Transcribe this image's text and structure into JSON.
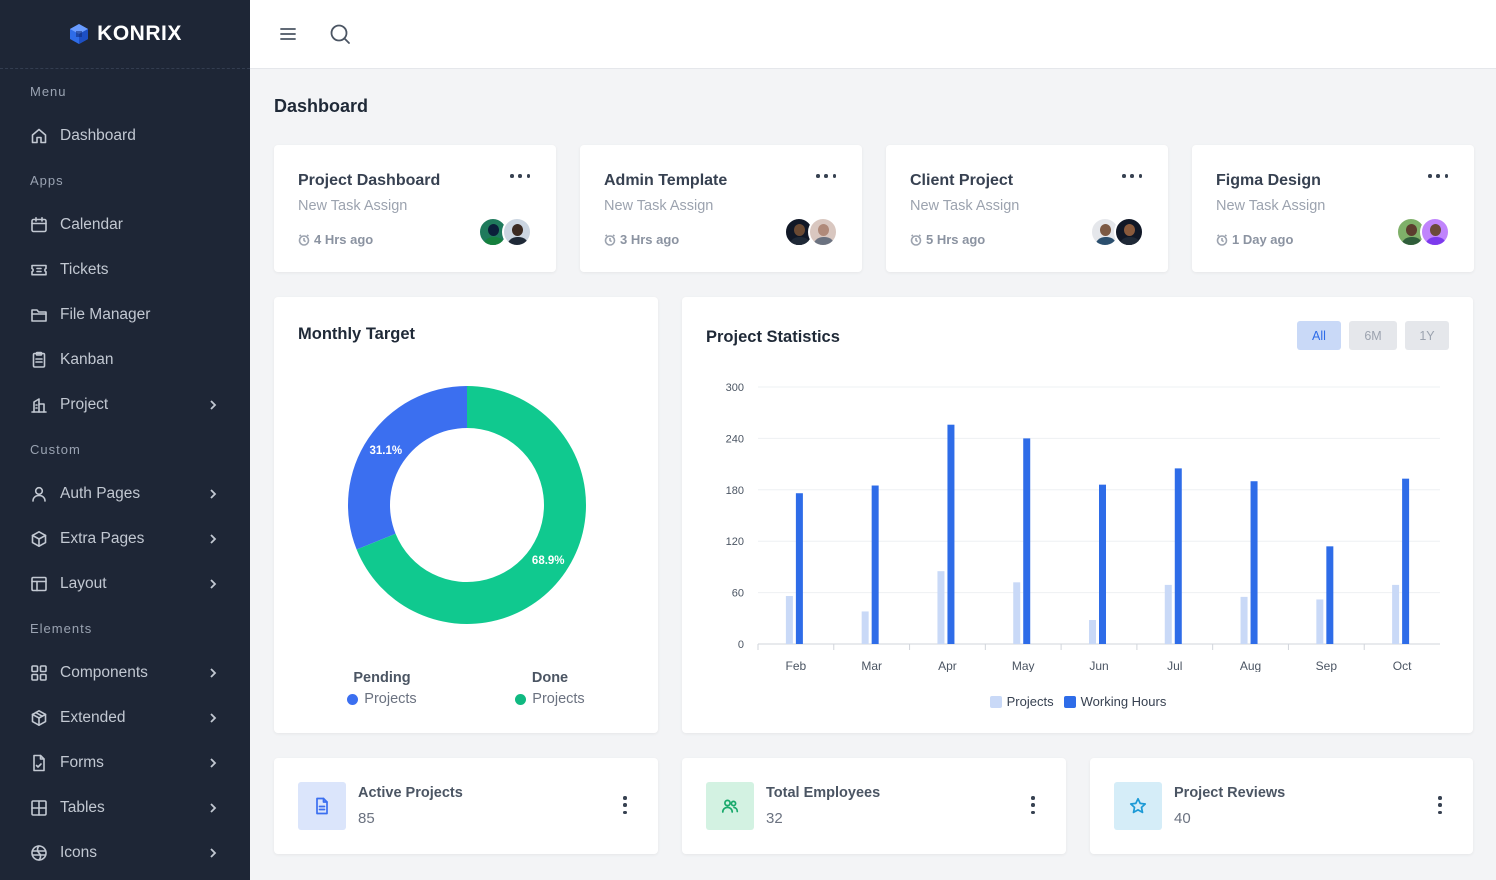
{
  "brand": {
    "name": "KONRIX"
  },
  "sidebar": {
    "sections": [
      {
        "title": "Menu",
        "items": [
          {
            "label": "Dashboard",
            "icon": "home-icon",
            "chevron": false
          }
        ]
      },
      {
        "title": "Apps",
        "items": [
          {
            "label": "Calendar",
            "icon": "calendar-icon",
            "chevron": false
          },
          {
            "label": "Tickets",
            "icon": "ticket-icon",
            "chevron": false
          },
          {
            "label": "File Manager",
            "icon": "folder-icon",
            "chevron": false
          },
          {
            "label": "Kanban",
            "icon": "clipboard-icon",
            "chevron": false
          },
          {
            "label": "Project",
            "icon": "building-icon",
            "chevron": true
          }
        ]
      },
      {
        "title": "Custom",
        "items": [
          {
            "label": "Auth Pages",
            "icon": "user-icon",
            "chevron": true
          },
          {
            "label": "Extra Pages",
            "icon": "box-icon",
            "chevron": true
          },
          {
            "label": "Layout",
            "icon": "layout-icon",
            "chevron": true
          }
        ]
      },
      {
        "title": "Elements",
        "items": [
          {
            "label": "Components",
            "icon": "components-icon",
            "chevron": true
          },
          {
            "label": "Extended",
            "icon": "package-icon",
            "chevron": true
          },
          {
            "label": "Forms",
            "icon": "form-icon",
            "chevron": true
          },
          {
            "label": "Tables",
            "icon": "table-icon",
            "chevron": true
          },
          {
            "label": "Icons",
            "icon": "icons-icon",
            "chevron": true
          }
        ]
      }
    ]
  },
  "topbar": {
    "menu_icon": "hamburger-icon",
    "search_icon": "search-icon"
  },
  "page": {
    "title": "Dashboard"
  },
  "project_cards": [
    {
      "title": "Project Dashboard",
      "subtitle": "New Task Assign",
      "time": "4 Hrs ago"
    },
    {
      "title": "Admin Template",
      "subtitle": "New Task Assign",
      "time": "3 Hrs ago"
    },
    {
      "title": "Client Project",
      "subtitle": "New Task Assign",
      "time": "5 Hrs ago"
    },
    {
      "title": "Figma Design",
      "subtitle": "New Task Assign",
      "time": "1 Day ago"
    }
  ],
  "monthly_target": {
    "title": "Monthly Target",
    "pending": {
      "title": "Pending",
      "sub": "Projects",
      "color": "#3b6ff0"
    },
    "done": {
      "title": "Done",
      "sub": "Projects",
      "color": "#10c98f"
    }
  },
  "project_statistics": {
    "title": "Project Statistics",
    "ranges": [
      "All",
      "6M",
      "1Y"
    ],
    "active_range": "All"
  },
  "stats": [
    {
      "label": "Active Projects",
      "value": "85",
      "icon": "file-icon",
      "bg": "#dbe5fb",
      "color": "#3b6ff0"
    },
    {
      "label": "Total Employees",
      "value": "32",
      "icon": "users-icon",
      "bg": "#d3f2e2",
      "color": "#18a96b"
    },
    {
      "label": "Project Reviews",
      "value": "40",
      "icon": "star-icon",
      "bg": "#d5edf8",
      "color": "#1c9ad6"
    }
  ],
  "chart_data": [
    {
      "type": "pie",
      "labels": [
        "Pending",
        "Done"
      ],
      "values": [
        31.1,
        68.9
      ],
      "value_labels": [
        "31.1%",
        "68.9%"
      ],
      "colors": [
        "#3b6ff0",
        "#10c98f"
      ],
      "donut": true
    },
    {
      "type": "bar",
      "categories": [
        "Feb",
        "Mar",
        "Apr",
        "May",
        "Jun",
        "Jul",
        "Aug",
        "Sep",
        "Oct"
      ],
      "series": [
        {
          "name": "Projects",
          "color": "#c9d9f7",
          "values": [
            56,
            38,
            85,
            72,
            28,
            69,
            55,
            52,
            69
          ]
        },
        {
          "name": "Working Hours",
          "color": "#2e6ce8",
          "values": [
            176,
            185,
            256,
            240,
            186,
            205,
            190,
            114,
            193
          ]
        }
      ],
      "ylim": [
        0,
        300
      ],
      "yticks": [
        0,
        60,
        120,
        180,
        240,
        300
      ],
      "grid": true,
      "legend": "bottom-center"
    }
  ]
}
